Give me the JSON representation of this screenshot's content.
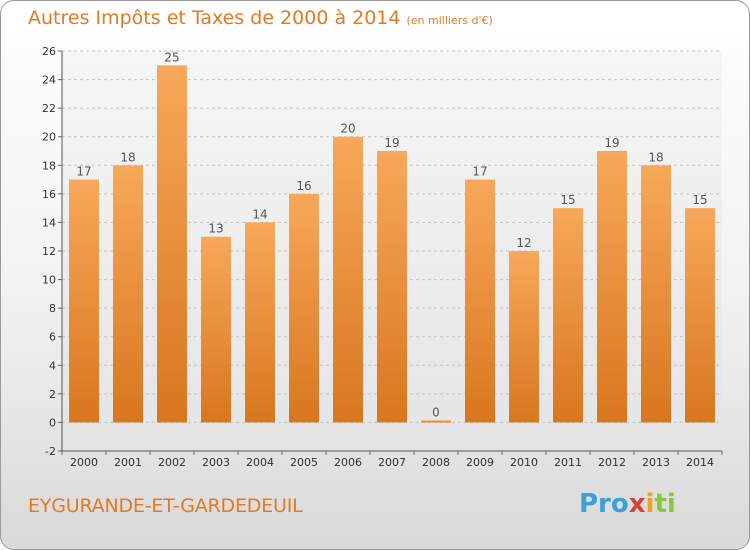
{
  "header": {
    "title": "Autres Impôts et Taxes de 2000 à 2014",
    "unit": "(en milliers d'€)"
  },
  "footer": {
    "commune": "EYGURANDE-ET-GARDEDEUIL",
    "logo": [
      "Pro",
      "x",
      "i",
      "ti"
    ]
  },
  "colors": {
    "accent": "#e07b24",
    "bar_top": "#f7a85a",
    "bar_bottom": "#d9761f"
  },
  "chart_data": {
    "type": "bar",
    "title": "Autres Impôts et Taxes de 2000 à 2014",
    "categories": [
      "2000",
      "2001",
      "2002",
      "2003",
      "2004",
      "2005",
      "2006",
      "2007",
      "2008",
      "2009",
      "2010",
      "2011",
      "2012",
      "2013",
      "2014"
    ],
    "values": [
      17,
      18,
      25,
      13,
      14,
      16,
      20,
      19,
      0,
      17,
      12,
      15,
      19,
      18,
      15
    ],
    "data_labels": [
      "17",
      "18",
      "25",
      "13",
      "14",
      "16",
      "20",
      "19",
      "0",
      "17",
      "12",
      "15",
      "19",
      "18",
      "15"
    ],
    "ylim": [
      -2,
      26
    ],
    "yticks": [
      -2,
      0,
      2,
      4,
      6,
      8,
      10,
      12,
      14,
      16,
      18,
      20,
      22,
      24,
      26
    ],
    "ytick_labels": [
      "-2",
      "0",
      "2",
      "4",
      "6",
      "8",
      "10",
      "12",
      "14",
      "16",
      "18",
      "20",
      "22",
      "24",
      "26"
    ],
    "grid": true,
    "legend": "none"
  }
}
